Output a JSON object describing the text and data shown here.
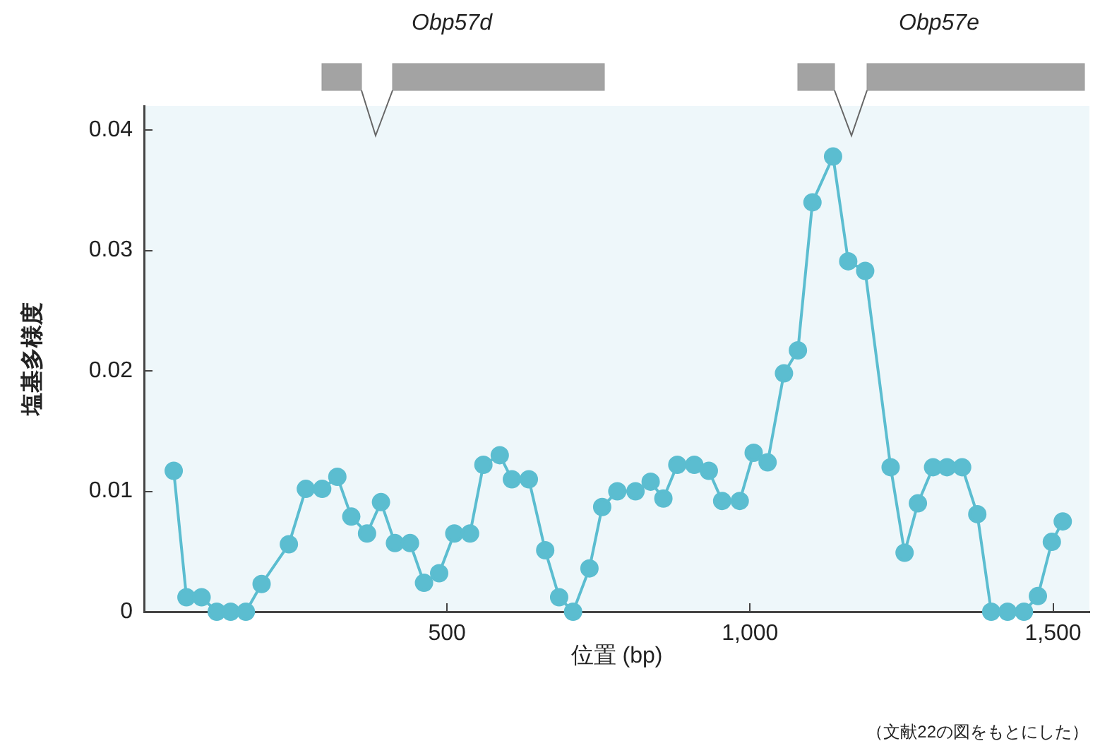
{
  "chart_data": {
    "type": "line",
    "xlabel": "位置 (bp)",
    "ylabel": "塩基多様度",
    "x": [
      49,
      70,
      95,
      120,
      143,
      168,
      194,
      239,
      267,
      294,
      319,
      342,
      368,
      391,
      414,
      439,
      462,
      487,
      512,
      538,
      560,
      587,
      607,
      635,
      662,
      685,
      708,
      735,
      756,
      781,
      811,
      836,
      857,
      880,
      908,
      932,
      954,
      983,
      1006,
      1029,
      1056,
      1079,
      1103,
      1137,
      1162,
      1190,
      1232,
      1255,
      1277,
      1302,
      1325,
      1350,
      1375,
      1398,
      1425,
      1452,
      1475,
      1498,
      1516
    ],
    "series": [
      {
        "color": "#5bbdd0",
        "values": [
          0.0117,
          0.0012,
          0.0012,
          0,
          0,
          0,
          0.0023,
          0.0056,
          0.0102,
          0.0102,
          0.0112,
          0.0079,
          0.0065,
          0.0091,
          0.0057,
          0.0057,
          0.0024,
          0.0032,
          0.0065,
          0.0065,
          0.0122,
          0.013,
          0.011,
          0.011,
          0.0051,
          0.0012,
          0,
          0.0036,
          0.0087,
          0.01,
          0.01,
          0.0108,
          0.0094,
          0.0122,
          0.0122,
          0.0117,
          0.0092,
          0.0092,
          0.0132,
          0.0124,
          0.0198,
          0.0217,
          0.034,
          0.0378,
          0.0291,
          0.0283,
          0.012,
          0.0049,
          0.009,
          0.012,
          0.012,
          0.012,
          0.0081,
          0,
          0,
          0,
          0.0013,
          0.0058,
          0.0075
        ]
      }
    ],
    "xlim": [
      0,
      1560
    ],
    "xticks": [
      {
        "value": 500,
        "label": "500"
      },
      {
        "value": 1000,
        "label": "1,000"
      },
      {
        "value": 1500,
        "label": "1,500"
      }
    ],
    "ylim": [
      0,
      0.042
    ],
    "yticks": [
      0,
      0.01,
      0.02,
      0.03,
      0.04
    ],
    "marker": "circle",
    "line_style": "solid",
    "legend": false,
    "annotations": [
      "Obp57d",
      "Obp57e",
      "（文献22の図をもとにした）"
    ]
  }
}
